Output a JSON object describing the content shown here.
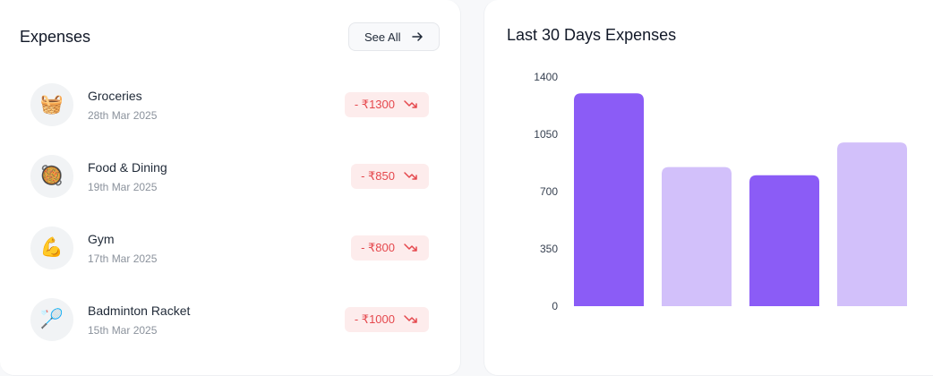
{
  "expenses": {
    "title": "Expenses",
    "see_all_label": "See All",
    "items": [
      {
        "name": "Groceries",
        "date": "28th Mar 2025",
        "amount": "- ₹1300",
        "icon": "🧺",
        "icon_name": "basket-icon"
      },
      {
        "name": "Food & Dining",
        "date": "19th Mar 2025",
        "amount": "- ₹850",
        "icon": "🥘",
        "icon_name": "food-pan-icon"
      },
      {
        "name": "Gym",
        "date": "17th Mar 2025",
        "amount": "- ₹800",
        "icon": "💪",
        "icon_name": "flexed-biceps-icon"
      },
      {
        "name": "Badminton Racket",
        "date": "15th Mar 2025",
        "amount": "- ₹1000",
        "icon": "🏸",
        "icon_name": "badminton-icon"
      }
    ]
  },
  "colors": {
    "bar_dark": "#8b5cf6",
    "bar_light": "#d2c0fa",
    "amount_text": "#e5484d",
    "amount_bg": "#fdecec"
  },
  "chart_data": {
    "type": "bar",
    "title": "Last 30 Days Expenses",
    "categories": [
      "",
      "",
      "",
      ""
    ],
    "values": [
      1300,
      850,
      800,
      1000
    ],
    "ylim": [
      0,
      1400
    ],
    "yticks": [
      0,
      350,
      700,
      1050,
      1400
    ],
    "xlabel": "",
    "ylabel": "",
    "grid": false
  }
}
